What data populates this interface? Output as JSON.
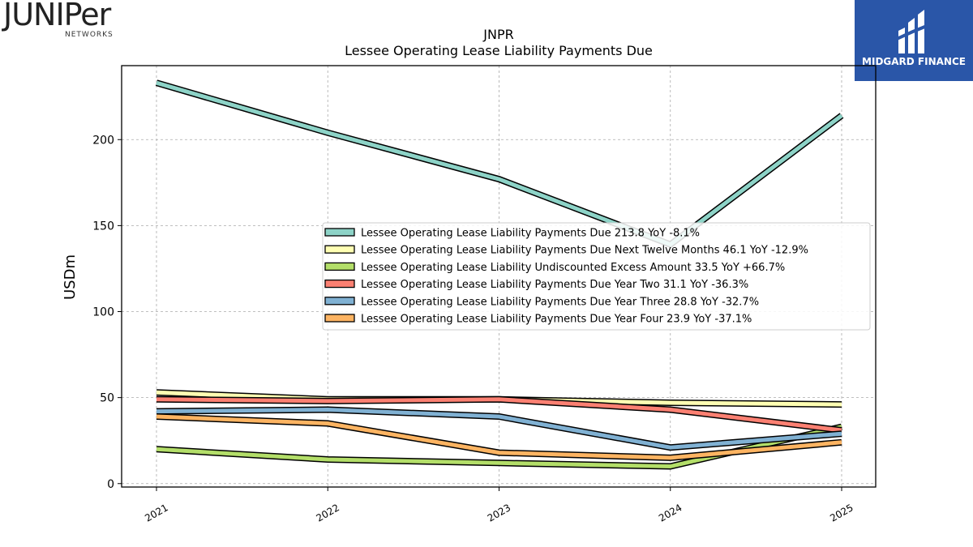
{
  "brand": {
    "left_logo_text": "JUNIPer",
    "left_logo_sub": "NETWORKS",
    "right_logo_text": "MIDGARD FINANCE",
    "right_logo_color": "#2a56a8"
  },
  "chart_data": {
    "type": "line",
    "title": "JNPR",
    "subtitle": "Lessee Operating Lease Liability Payments Due",
    "xlabel": "",
    "ylabel": "USDm",
    "x": [
      "2021",
      "2022",
      "2023",
      "2024",
      "2025"
    ],
    "yticks": [
      0,
      50,
      100,
      150,
      200
    ],
    "ylim": [
      -2,
      243
    ],
    "grid": true,
    "legend_position": "center-right",
    "series": [
      {
        "name": "Lessee Operating Lease Liability Payments Due",
        "legend": "Lessee Operating Lease Liability Payments Due  213.8 YoY -8.1%",
        "color": "#8dd3c7",
        "values": [
          233,
          204,
          177,
          139,
          214
        ]
      },
      {
        "name": "Lessee Operating Lease Liability Payments Due Next Twelve Months",
        "legend": "Lessee Operating Lease Liability Payments Due Next Twelve Months  46.1 YoY -12.9%",
        "color": "#ffffb3",
        "values": [
          53,
          49,
          49,
          47,
          46
        ]
      },
      {
        "name": "Lessee Operating Lease Liability Undiscounted Excess Amount",
        "legend": "Lessee Operating Lease Liability Undiscounted Excess Amount  33.5 YoY +66.7%",
        "color": "#b3de69",
        "values": [
          20,
          14,
          12,
          10,
          33
        ]
      },
      {
        "name": "Lessee Operating Lease Liability Payments Due Year Two",
        "legend": "Lessee Operating Lease Liability Payments Due Year Two  31.1 YoY -36.3%",
        "color": "#fb8072",
        "values": [
          49,
          48,
          49,
          43,
          31
        ]
      },
      {
        "name": "Lessee Operating Lease Liability Payments Due Year Three",
        "legend": "Lessee Operating Lease Liability Payments Due Year Three  28.8 YoY -32.7%",
        "color": "#80b1d3",
        "values": [
          42,
          43,
          39,
          21,
          29
        ]
      },
      {
        "name": "Lessee Operating Lease Liability Payments Due Year Four",
        "legend": "Lessee Operating Lease Liability Payments Due Year Four  23.9 YoY -37.1%",
        "color": "#fdb462",
        "values": [
          39,
          35,
          18,
          15,
          24
        ]
      }
    ]
  }
}
